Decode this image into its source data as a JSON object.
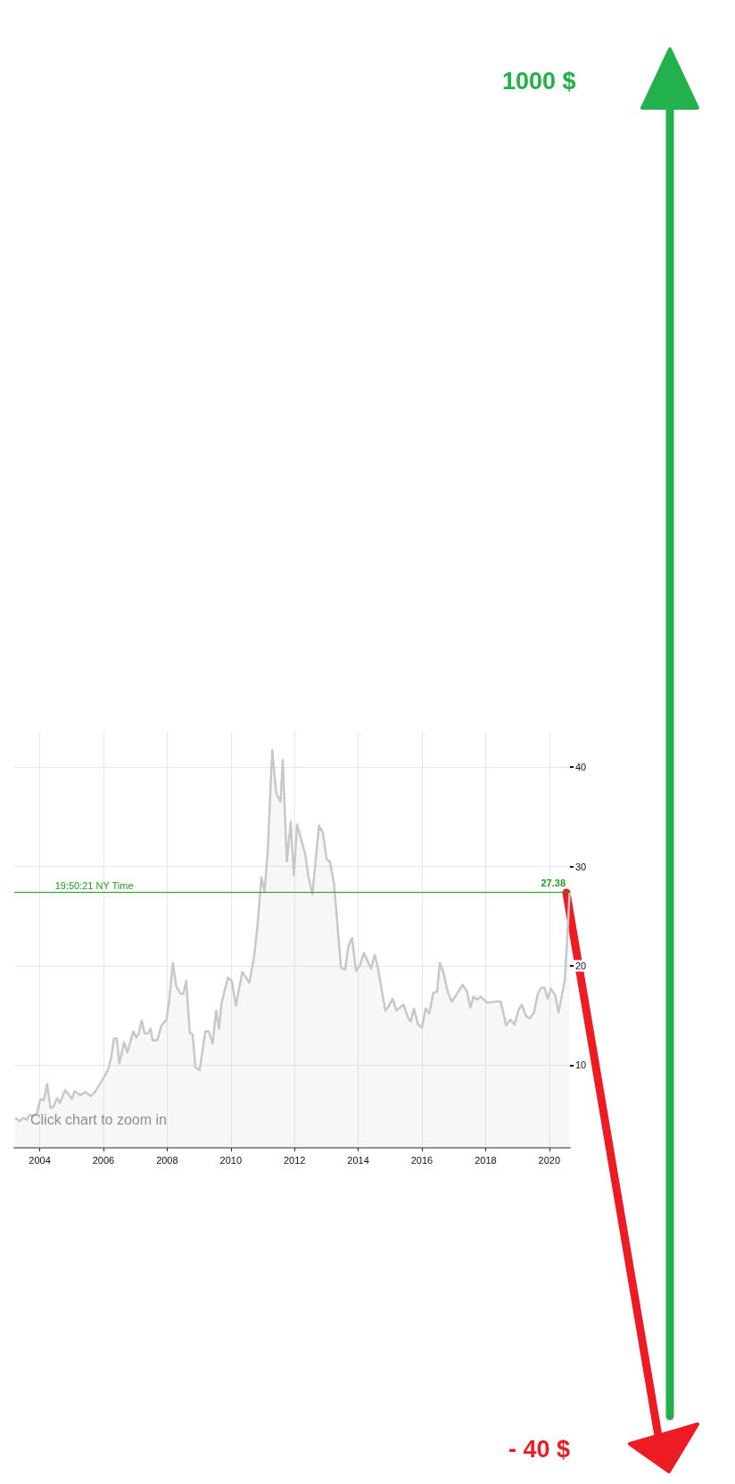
{
  "chart_data": {
    "type": "area",
    "annotations": [
      "Click chart to zoom in",
      {
        "text": "19:50:21 NY Time",
        "x": 2005.6,
        "y": 27.38
      },
      "1000 $",
      "- 40 $"
    ],
    "x": [
      2003.22,
      2003.37,
      2003.49,
      2003.59,
      2003.68,
      2003.85,
      2003.92,
      2004.02,
      2004.13,
      2004.23,
      2004.34,
      2004.42,
      2004.55,
      2004.63,
      2004.8,
      2005.01,
      2005.1,
      2005.27,
      2005.43,
      2005.6,
      2005.73,
      2005.98,
      2006.14,
      2006.24,
      2006.33,
      2006.42,
      2006.5,
      2006.65,
      2006.75,
      2006.94,
      2007.03,
      2007.11,
      2007.2,
      2007.29,
      2007.4,
      2007.48,
      2007.54,
      2007.69,
      2007.82,
      2007.98,
      2008.06,
      2008.18,
      2008.29,
      2008.42,
      2008.51,
      2008.6,
      2008.71,
      2008.8,
      2008.89,
      2009.02,
      2009.2,
      2009.31,
      2009.43,
      2009.54,
      2009.63,
      2009.71,
      2009.91,
      2010.03,
      2010.16,
      2010.36,
      2010.58,
      2010.73,
      2010.83,
      2010.96,
      2011.06,
      2011.16,
      2011.3,
      2011.43,
      2011.56,
      2011.63,
      2011.76,
      2011.88,
      2011.98,
      2012.08,
      2012.33,
      2012.43,
      2012.56,
      2012.77,
      2012.89,
      2013.01,
      2013.11,
      2013.24,
      2013.34,
      2013.46,
      2013.59,
      2013.69,
      2013.81,
      2013.93,
      2014.05,
      2014.18,
      2014.4,
      2014.52,
      2014.62,
      2014.85,
      2014.95,
      2015.08,
      2015.2,
      2015.42,
      2015.58,
      2015.65,
      2015.75,
      2015.88,
      2016.0,
      2016.12,
      2016.23,
      2016.36,
      2016.48,
      2016.56,
      2016.67,
      2016.82,
      2016.94,
      2017.08,
      2017.28,
      2017.42,
      2017.52,
      2017.62,
      2017.74,
      2017.85,
      2018.05,
      2018.3,
      2018.47,
      2018.65,
      2018.78,
      2018.91,
      2019.04,
      2019.14,
      2019.26,
      2019.38,
      2019.52,
      2019.65,
      2019.75,
      2019.85,
      2019.95,
      2020.05,
      2020.19,
      2020.29,
      2020.49,
      2020.59,
      2020.64
    ],
    "series": [
      {
        "color": "#c8c8c8",
        "values": [
          4.7,
          4.4,
          4.7,
          4.5,
          5.0,
          4.9,
          5.3,
          6.6,
          6.5,
          8.1,
          5.7,
          5.8,
          6.7,
          6.2,
          7.5,
          6.6,
          7.4,
          7.0,
          7.3,
          6.9,
          7.3,
          8.6,
          9.5,
          10.7,
          12.7,
          12.7,
          10.2,
          12.3,
          11.3,
          13.4,
          12.8,
          13.2,
          14.5,
          13.2,
          13.2,
          13.7,
          12.5,
          12.5,
          14.0,
          14.6,
          16.4,
          20.3,
          17.9,
          17.2,
          17.2,
          18.5,
          13.3,
          13.1,
          9.8,
          9.5,
          13.4,
          13.4,
          12.2,
          15.5,
          13.7,
          16.3,
          18.8,
          18.5,
          16.0,
          19.4,
          18.3,
          20.9,
          23.8,
          28.9,
          27.5,
          31.6,
          41.7,
          37.3,
          36.5,
          40.7,
          30.5,
          34.5,
          29.1,
          34.2,
          31.3,
          29.1,
          27.2,
          34.1,
          33.4,
          30.7,
          30.5,
          28.3,
          24.4,
          19.8,
          19.6,
          22.0,
          22.8,
          19.5,
          20.0,
          21.3,
          19.7,
          21.1,
          19.8,
          15.5,
          15.9,
          16.7,
          15.5,
          16.1,
          14.7,
          14.4,
          15.7,
          14.1,
          13.8,
          15.7,
          15.2,
          17.3,
          17.4,
          20.3,
          19.4,
          17.3,
          16.4,
          17.1,
          18.1,
          17.4,
          15.8,
          16.9,
          16.6,
          16.9,
          16.3,
          16.4,
          16.4,
          14.0,
          14.6,
          14.1,
          15.6,
          16.1,
          15.0,
          14.7,
          15.3,
          17.3,
          17.8,
          17.8,
          16.7,
          17.7,
          17.0,
          15.3,
          18.6,
          24.4,
          27.4
        ]
      }
    ],
    "xlim": [
      2003.2,
      2020.65
    ],
    "xticks": [
      2004,
      2006,
      2008,
      2010,
      2012,
      2014,
      2016,
      2018,
      2020
    ],
    "ylim": [
      1.7,
      43.5
    ],
    "yticks": [
      10,
      20,
      30,
      40
    ],
    "ref_lines": [
      {
        "axis": "y",
        "value": 27.38,
        "label": "27.38",
        "color": "#1f9e1f"
      }
    ],
    "grid": true,
    "marker": "none",
    "line_style": "solid"
  }
}
